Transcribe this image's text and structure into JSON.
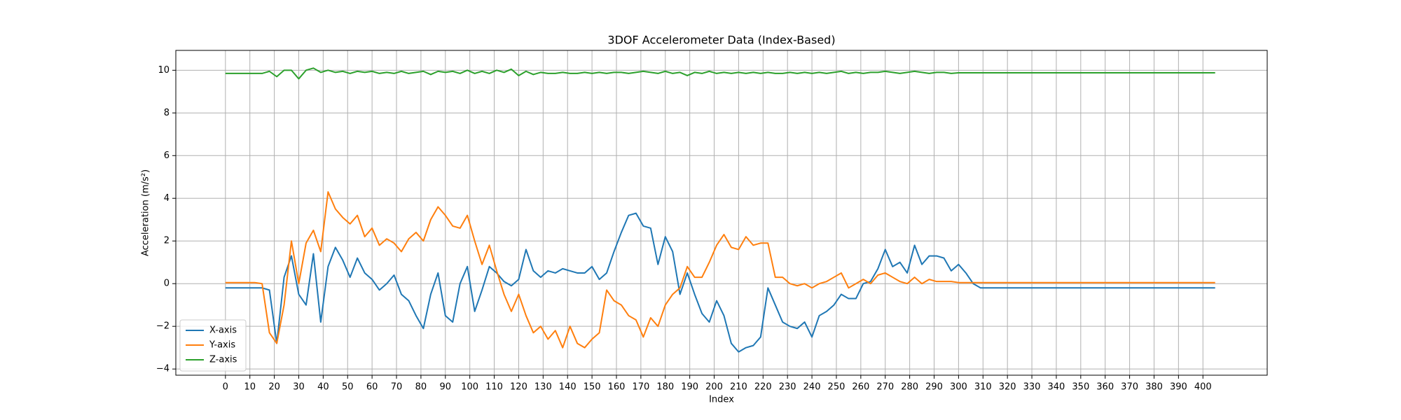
{
  "chart_data": {
    "type": "line",
    "title": "3DOF Accelerometer Data (Index-Based)",
    "x_label": "Index",
    "y_label": "Acceleration (m/s²)",
    "x": [
      0,
      3,
      6,
      9,
      12,
      15,
      18,
      21,
      24,
      27,
      30,
      33,
      36,
      39,
      42,
      45,
      48,
      51,
      54,
      57,
      60,
      63,
      66,
      69,
      72,
      75,
      78,
      81,
      84,
      87,
      90,
      93,
      96,
      99,
      102,
      105,
      108,
      111,
      114,
      117,
      120,
      123,
      126,
      129,
      132,
      135,
      138,
      141,
      144,
      147,
      150,
      153,
      156,
      159,
      162,
      165,
      168,
      171,
      174,
      177,
      180,
      183,
      186,
      189,
      192,
      195,
      198,
      201,
      204,
      207,
      210,
      213,
      216,
      219,
      222,
      225,
      228,
      231,
      234,
      237,
      240,
      243,
      246,
      249,
      252,
      255,
      258,
      261,
      264,
      267,
      270,
      273,
      276,
      279,
      282,
      285,
      288,
      291,
      294,
      297,
      300,
      303,
      306,
      309,
      312,
      315,
      318,
      321,
      324,
      327,
      330,
      333,
      336,
      339,
      342,
      345,
      348,
      351,
      354,
      357,
      360,
      363,
      366,
      369,
      372,
      375,
      378,
      381,
      384,
      387,
      390,
      393,
      396,
      399,
      402,
      405
    ],
    "series": [
      {
        "name": "X-axis",
        "color": "#1f77b4",
        "values": [
          -0.2,
          -0.2,
          -0.2,
          -0.2,
          -0.2,
          -0.2,
          -0.3,
          -2.8,
          0.3,
          1.3,
          -0.5,
          -1.0,
          1.4,
          -1.8,
          0.8,
          1.7,
          1.1,
          0.3,
          1.2,
          0.5,
          0.2,
          -0.3,
          0.0,
          0.4,
          -0.5,
          -0.8,
          -1.5,
          -2.1,
          -0.5,
          0.5,
          -1.5,
          -1.8,
          0.0,
          0.8,
          -1.3,
          -0.3,
          0.8,
          0.5,
          0.1,
          -0.1,
          0.2,
          1.6,
          0.6,
          0.3,
          0.6,
          0.5,
          0.7,
          0.6,
          0.5,
          0.5,
          0.8,
          0.2,
          0.5,
          1.5,
          2.4,
          3.2,
          3.3,
          2.7,
          2.6,
          0.9,
          2.2,
          1.5,
          -0.5,
          0.5,
          -0.5,
          -1.4,
          -1.8,
          -0.8,
          -1.5,
          -2.8,
          -3.2,
          -3.0,
          -2.9,
          -2.5,
          -0.2,
          -1.0,
          -1.8,
          -2.0,
          -2.1,
          -1.8,
          -2.5,
          -1.5,
          -1.3,
          -1.0,
          -0.5,
          -0.7,
          -0.7,
          0.0,
          0.1,
          0.7,
          1.6,
          0.8,
          1.0,
          0.5,
          1.8,
          0.9,
          1.3,
          1.3,
          1.2,
          0.6,
          0.9,
          0.5,
          0.0,
          -0.2,
          -0.2,
          -0.2,
          -0.2,
          -0.2,
          -0.2,
          -0.2,
          -0.2,
          -0.2,
          -0.2,
          -0.2,
          -0.2,
          -0.2,
          -0.2,
          -0.2,
          -0.2,
          -0.2,
          -0.2,
          -0.2,
          -0.2,
          -0.2,
          -0.2,
          -0.2,
          -0.2,
          -0.2,
          -0.2,
          -0.2,
          -0.2,
          -0.2,
          -0.2,
          -0.2,
          -0.2,
          -0.2
        ]
      },
      {
        "name": "Y-axis",
        "color": "#ff7f0e",
        "values": [
          0.05,
          0.05,
          0.05,
          0.05,
          0.05,
          0.0,
          -2.3,
          -2.8,
          -1.0,
          2.0,
          0.0,
          1.9,
          2.5,
          1.5,
          4.3,
          3.5,
          3.1,
          2.8,
          3.2,
          2.2,
          2.6,
          1.8,
          2.1,
          1.9,
          1.5,
          2.1,
          2.4,
          2.0,
          3.0,
          3.6,
          3.2,
          2.7,
          2.6,
          3.2,
          2.0,
          0.9,
          1.8,
          0.6,
          -0.5,
          -1.3,
          -0.5,
          -1.5,
          -2.3,
          -2.0,
          -2.6,
          -2.2,
          -3.0,
          -2.0,
          -2.8,
          -3.0,
          -2.6,
          -2.3,
          -0.3,
          -0.8,
          -1.0,
          -1.5,
          -1.7,
          -2.5,
          -1.6,
          -2.0,
          -1.0,
          -0.5,
          -0.2,
          0.8,
          0.3,
          0.3,
          1.0,
          1.8,
          2.3,
          1.7,
          1.6,
          2.2,
          1.8,
          1.9,
          1.9,
          0.3,
          0.3,
          0.0,
          -0.1,
          0.0,
          -0.2,
          0.0,
          0.1,
          0.3,
          0.5,
          -0.2,
          0.0,
          0.2,
          0.0,
          0.4,
          0.5,
          0.3,
          0.1,
          0.0,
          0.3,
          0.0,
          0.2,
          0.1,
          0.1,
          0.1,
          0.05,
          0.05,
          0.05,
          0.05,
          0.05,
          0.05,
          0.05,
          0.05,
          0.05,
          0.05,
          0.05,
          0.05,
          0.05,
          0.05,
          0.05,
          0.05,
          0.05,
          0.05,
          0.05,
          0.05,
          0.05,
          0.05,
          0.05,
          0.05,
          0.05,
          0.05,
          0.05,
          0.05,
          0.05,
          0.05,
          0.05,
          0.05,
          0.05,
          0.05,
          0.05,
          0.05
        ]
      },
      {
        "name": "Z-axis",
        "color": "#2ca02c",
        "values": [
          9.85,
          9.85,
          9.85,
          9.85,
          9.85,
          9.85,
          9.95,
          9.7,
          10.0,
          10.0,
          9.6,
          10.0,
          10.1,
          9.9,
          10.0,
          9.9,
          9.95,
          9.85,
          9.95,
          9.9,
          9.95,
          9.85,
          9.9,
          9.85,
          9.95,
          9.85,
          9.9,
          9.95,
          9.8,
          9.95,
          9.9,
          9.95,
          9.85,
          10.0,
          9.85,
          9.95,
          9.85,
          10.0,
          9.9,
          10.05,
          9.75,
          9.95,
          9.8,
          9.9,
          9.85,
          9.85,
          9.9,
          9.85,
          9.85,
          9.9,
          9.85,
          9.9,
          9.85,
          9.9,
          9.9,
          9.85,
          9.9,
          9.95,
          9.9,
          9.85,
          9.95,
          9.85,
          9.9,
          9.75,
          9.9,
          9.85,
          9.95,
          9.85,
          9.9,
          9.85,
          9.9,
          9.85,
          9.9,
          9.85,
          9.9,
          9.85,
          9.85,
          9.9,
          9.85,
          9.9,
          9.85,
          9.9,
          9.85,
          9.9,
          9.95,
          9.85,
          9.9,
          9.85,
          9.9,
          9.9,
          9.95,
          9.9,
          9.85,
          9.9,
          9.95,
          9.9,
          9.85,
          9.9,
          9.9,
          9.85,
          9.88,
          9.88,
          9.88,
          9.88,
          9.88,
          9.88,
          9.88,
          9.88,
          9.88,
          9.88,
          9.88,
          9.88,
          9.88,
          9.88,
          9.88,
          9.88,
          9.88,
          9.88,
          9.88,
          9.88,
          9.88,
          9.88,
          9.88,
          9.88,
          9.88,
          9.88,
          9.88,
          9.88,
          9.88,
          9.88,
          9.88,
          9.88,
          9.88,
          9.88,
          9.88,
          9.88
        ]
      }
    ],
    "xlim": [
      -20.3,
      426.3
    ],
    "ylim": [
      -4.29,
      10.93
    ],
    "xticks": [
      0,
      10,
      20,
      30,
      40,
      50,
      60,
      70,
      80,
      90,
      100,
      110,
      120,
      130,
      140,
      150,
      160,
      170,
      180,
      190,
      200,
      210,
      220,
      230,
      240,
      250,
      260,
      270,
      280,
      290,
      300,
      310,
      320,
      330,
      340,
      350,
      360,
      370,
      380,
      390,
      400
    ],
    "yticks": [
      {
        "value": -4,
        "label": "−4"
      },
      {
        "value": -2,
        "label": "−2"
      },
      0,
      2,
      4,
      6,
      8,
      10
    ],
    "grid": true,
    "legend": "lower left"
  }
}
